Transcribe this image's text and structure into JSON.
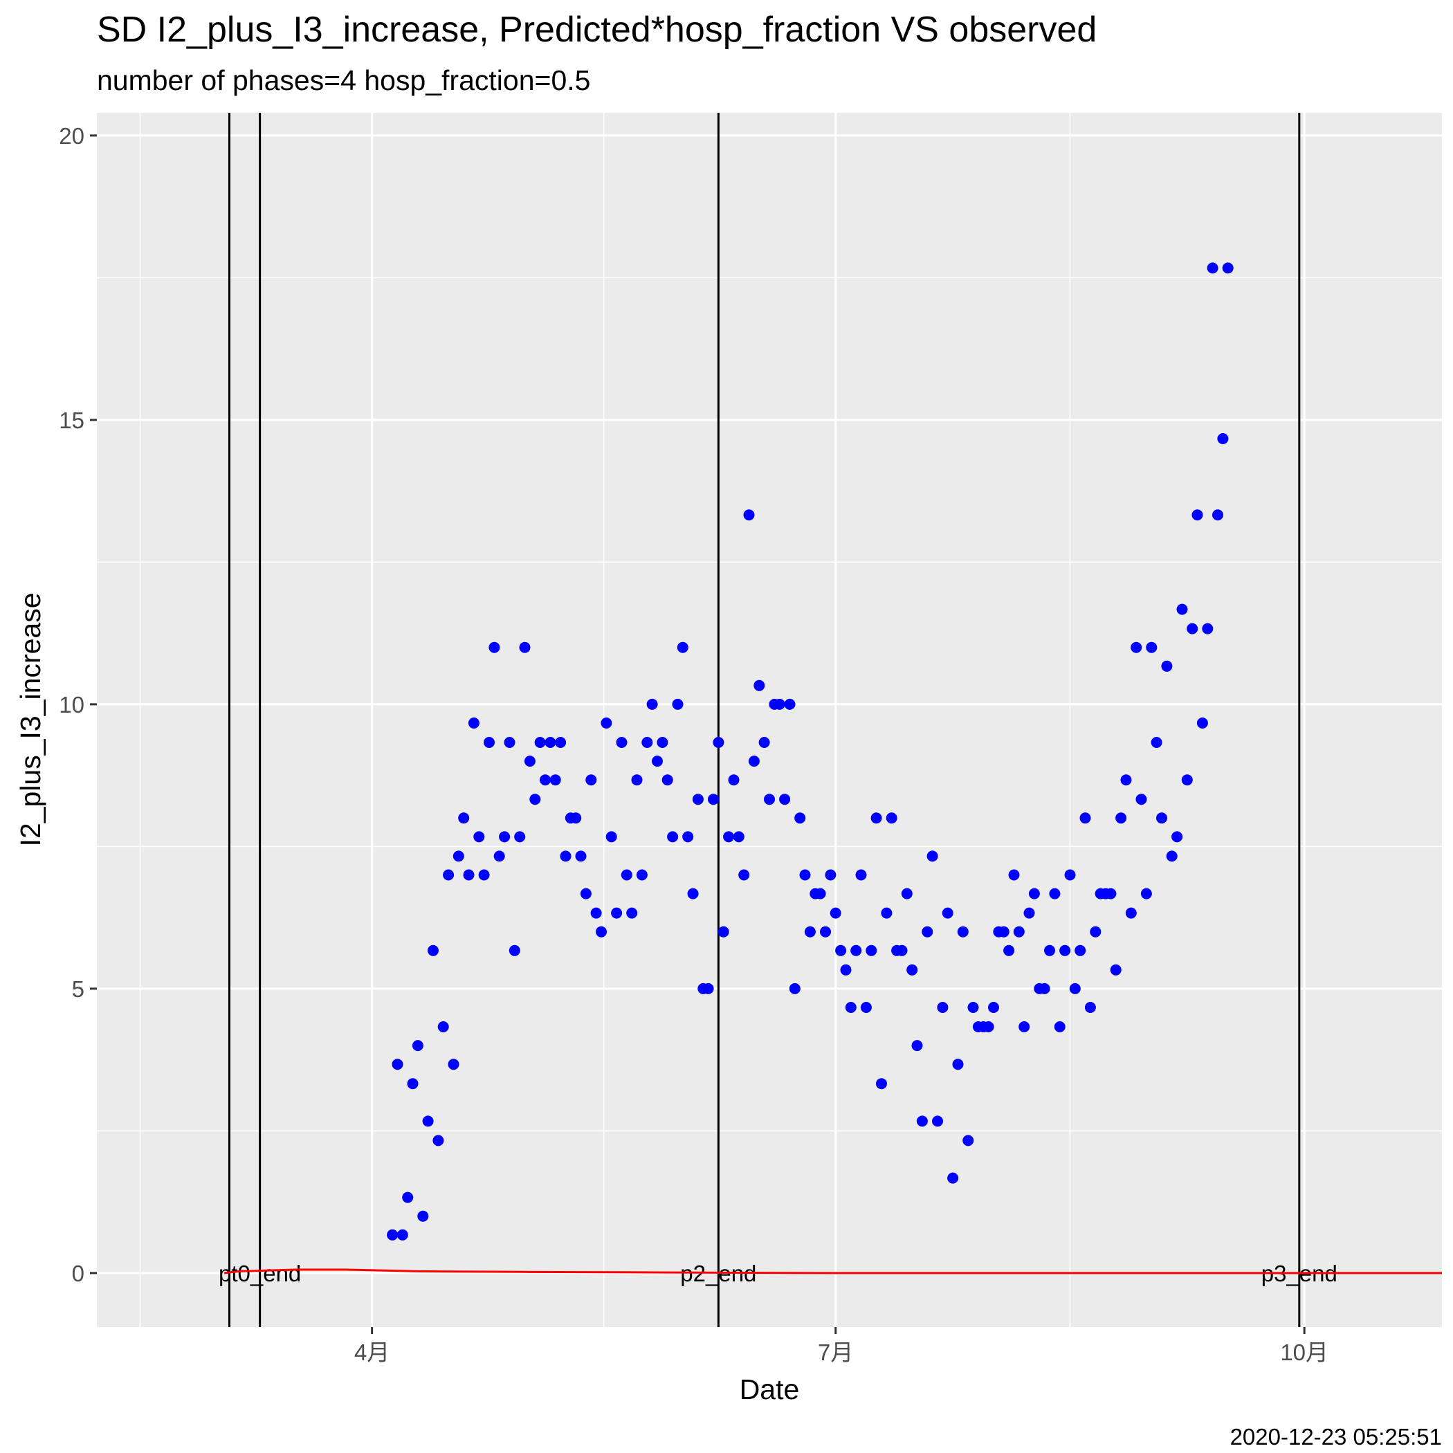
{
  "chart_data": {
    "type": "scatter",
    "title": "SD I2_plus_I3_increase, Predicted*hosp_fraction VS observed",
    "subtitle": "number of phases=4   hosp_fraction=0.5",
    "caption": "2020-12-23 05:25:51",
    "xlabel": "Date",
    "ylabel": "I2_plus_I3_increase",
    "xlim": [
      "2020-02-07",
      "2020-10-28"
    ],
    "ylim": [
      -0.95,
      20.4
    ],
    "x_ticks": [
      {
        "date": "2020-04-01",
        "label": "4月"
      },
      {
        "date": "2020-07-01",
        "label": "7月"
      },
      {
        "date": "2020-10-01",
        "label": "10月"
      }
    ],
    "y_ticks": [
      0,
      5,
      10,
      15,
      20
    ],
    "grid": true,
    "legend": "none",
    "vertical_lines": [
      {
        "date": "2020-03-04",
        "label": ""
      },
      {
        "date": "2020-03-10",
        "label": "pt0_end"
      },
      {
        "date": "2020-06-08",
        "label": "p2_end"
      },
      {
        "date": "2020-09-30",
        "label": "p3_end"
      }
    ],
    "colors": {
      "observed": "#0000ff",
      "predicted": "#ff0000",
      "vline": "#000000",
      "panel": "#ebebeb",
      "grid": "#ffffff"
    },
    "series": [
      {
        "kind": "points",
        "color": "#0000ff",
        "points": [
          [
            "2020-04-05",
            0.67
          ],
          [
            "2020-04-06",
            3.67
          ],
          [
            "2020-04-07",
            0.67
          ],
          [
            "2020-04-08",
            1.33
          ],
          [
            "2020-04-09",
            3.33
          ],
          [
            "2020-04-10",
            4.0
          ],
          [
            "2020-04-11",
            1.0
          ],
          [
            "2020-04-12",
            2.67
          ],
          [
            "2020-04-13",
            5.67
          ],
          [
            "2020-04-14",
            2.33
          ],
          [
            "2020-04-15",
            4.33
          ],
          [
            "2020-04-16",
            7.0
          ],
          [
            "2020-04-17",
            3.67
          ],
          [
            "2020-04-18",
            7.33
          ],
          [
            "2020-04-19",
            8.0
          ],
          [
            "2020-04-20",
            7.0
          ],
          [
            "2020-04-21",
            9.67
          ],
          [
            "2020-04-22",
            7.67
          ],
          [
            "2020-04-23",
            7.0
          ],
          [
            "2020-04-24",
            9.33
          ],
          [
            "2020-04-25",
            11.0
          ],
          [
            "2020-04-26",
            7.33
          ],
          [
            "2020-04-27",
            7.67
          ],
          [
            "2020-04-28",
            9.33
          ],
          [
            "2020-04-29",
            5.67
          ],
          [
            "2020-04-30",
            7.67
          ],
          [
            "2020-05-01",
            11.0
          ],
          [
            "2020-05-02",
            9.0
          ],
          [
            "2020-05-03",
            8.33
          ],
          [
            "2020-05-04",
            9.33
          ],
          [
            "2020-05-05",
            8.67
          ],
          [
            "2020-05-06",
            9.33
          ],
          [
            "2020-05-07",
            8.67
          ],
          [
            "2020-05-08",
            9.33
          ],
          [
            "2020-05-09",
            7.33
          ],
          [
            "2020-05-10",
            8.0
          ],
          [
            "2020-05-11",
            8.0
          ],
          [
            "2020-05-12",
            7.33
          ],
          [
            "2020-05-13",
            6.67
          ],
          [
            "2020-05-14",
            8.67
          ],
          [
            "2020-05-15",
            6.33
          ],
          [
            "2020-05-16",
            6.0
          ],
          [
            "2020-05-17",
            9.67
          ],
          [
            "2020-05-18",
            7.67
          ],
          [
            "2020-05-19",
            6.33
          ],
          [
            "2020-05-20",
            9.33
          ],
          [
            "2020-05-21",
            7.0
          ],
          [
            "2020-05-22",
            6.33
          ],
          [
            "2020-05-23",
            8.67
          ],
          [
            "2020-05-24",
            7.0
          ],
          [
            "2020-05-25",
            9.33
          ],
          [
            "2020-05-26",
            10.0
          ],
          [
            "2020-05-27",
            9.0
          ],
          [
            "2020-05-28",
            9.33
          ],
          [
            "2020-05-29",
            8.67
          ],
          [
            "2020-05-30",
            7.67
          ],
          [
            "2020-05-31",
            10.0
          ],
          [
            "2020-06-01",
            11.0
          ],
          [
            "2020-06-02",
            7.67
          ],
          [
            "2020-06-03",
            6.67
          ],
          [
            "2020-06-04",
            8.33
          ],
          [
            "2020-06-05",
            5.0
          ],
          [
            "2020-06-06",
            5.0
          ],
          [
            "2020-06-07",
            8.33
          ],
          [
            "2020-06-08",
            9.33
          ],
          [
            "2020-06-09",
            6.0
          ],
          [
            "2020-06-10",
            7.67
          ],
          [
            "2020-06-11",
            8.67
          ],
          [
            "2020-06-12",
            7.67
          ],
          [
            "2020-06-13",
            7.0
          ],
          [
            "2020-06-14",
            13.33
          ],
          [
            "2020-06-15",
            9.0
          ],
          [
            "2020-06-16",
            10.33
          ],
          [
            "2020-06-17",
            9.33
          ],
          [
            "2020-06-18",
            8.33
          ],
          [
            "2020-06-19",
            10.0
          ],
          [
            "2020-06-20",
            10.0
          ],
          [
            "2020-06-21",
            8.33
          ],
          [
            "2020-06-22",
            10.0
          ],
          [
            "2020-06-23",
            5.0
          ],
          [
            "2020-06-24",
            8.0
          ],
          [
            "2020-06-25",
            7.0
          ],
          [
            "2020-06-26",
            6.0
          ],
          [
            "2020-06-27",
            6.67
          ],
          [
            "2020-06-28",
            6.67
          ],
          [
            "2020-06-29",
            6.0
          ],
          [
            "2020-06-30",
            7.0
          ],
          [
            "2020-07-01",
            6.33
          ],
          [
            "2020-07-02",
            5.67
          ],
          [
            "2020-07-03",
            5.33
          ],
          [
            "2020-07-04",
            4.67
          ],
          [
            "2020-07-05",
            5.67
          ],
          [
            "2020-07-06",
            7.0
          ],
          [
            "2020-07-07",
            4.67
          ],
          [
            "2020-07-08",
            5.67
          ],
          [
            "2020-07-09",
            8.0
          ],
          [
            "2020-07-10",
            3.33
          ],
          [
            "2020-07-11",
            6.33
          ],
          [
            "2020-07-12",
            8.0
          ],
          [
            "2020-07-13",
            5.67
          ],
          [
            "2020-07-14",
            5.67
          ],
          [
            "2020-07-15",
            6.67
          ],
          [
            "2020-07-16",
            5.33
          ],
          [
            "2020-07-17",
            4.0
          ],
          [
            "2020-07-18",
            2.67
          ],
          [
            "2020-07-19",
            6.0
          ],
          [
            "2020-07-20",
            7.33
          ],
          [
            "2020-07-21",
            2.67
          ],
          [
            "2020-07-22",
            4.67
          ],
          [
            "2020-07-23",
            6.33
          ],
          [
            "2020-07-24",
            1.67
          ],
          [
            "2020-07-25",
            3.67
          ],
          [
            "2020-07-26",
            6.0
          ],
          [
            "2020-07-27",
            2.33
          ],
          [
            "2020-07-28",
            4.67
          ],
          [
            "2020-07-29",
            4.33
          ],
          [
            "2020-07-30",
            4.33
          ],
          [
            "2020-07-31",
            4.33
          ],
          [
            "2020-08-01",
            4.67
          ],
          [
            "2020-08-02",
            6.0
          ],
          [
            "2020-08-03",
            6.0
          ],
          [
            "2020-08-04",
            5.67
          ],
          [
            "2020-08-05",
            7.0
          ],
          [
            "2020-08-06",
            6.0
          ],
          [
            "2020-08-07",
            4.33
          ],
          [
            "2020-08-08",
            6.33
          ],
          [
            "2020-08-09",
            6.67
          ],
          [
            "2020-08-10",
            5.0
          ],
          [
            "2020-08-11",
            5.0
          ],
          [
            "2020-08-12",
            5.67
          ],
          [
            "2020-08-13",
            6.67
          ],
          [
            "2020-08-14",
            4.33
          ],
          [
            "2020-08-15",
            5.67
          ],
          [
            "2020-08-16",
            7.0
          ],
          [
            "2020-08-17",
            5.0
          ],
          [
            "2020-08-18",
            5.67
          ],
          [
            "2020-08-19",
            8.0
          ],
          [
            "2020-08-20",
            4.67
          ],
          [
            "2020-08-21",
            6.0
          ],
          [
            "2020-08-22",
            6.67
          ],
          [
            "2020-08-23",
            6.67
          ],
          [
            "2020-08-24",
            6.67
          ],
          [
            "2020-08-25",
            5.33
          ],
          [
            "2020-08-26",
            8.0
          ],
          [
            "2020-08-27",
            8.67
          ],
          [
            "2020-08-28",
            6.33
          ],
          [
            "2020-08-29",
            11.0
          ],
          [
            "2020-08-30",
            8.33
          ],
          [
            "2020-08-31",
            6.67
          ],
          [
            "2020-09-01",
            11.0
          ],
          [
            "2020-09-02",
            9.33
          ],
          [
            "2020-09-03",
            8.0
          ],
          [
            "2020-09-04",
            10.67
          ],
          [
            "2020-09-05",
            7.33
          ],
          [
            "2020-09-06",
            7.67
          ],
          [
            "2020-09-07",
            11.67
          ],
          [
            "2020-09-08",
            8.67
          ],
          [
            "2020-09-09",
            11.33
          ],
          [
            "2020-09-10",
            13.33
          ],
          [
            "2020-09-11",
            9.67
          ],
          [
            "2020-09-12",
            11.33
          ],
          [
            "2020-09-13",
            17.67
          ],
          [
            "2020-09-14",
            13.33
          ],
          [
            "2020-09-15",
            14.67
          ],
          [
            "2020-09-16",
            17.67
          ]
        ]
      },
      {
        "kind": "line",
        "color": "#ff0000",
        "points": [
          [
            "2020-03-03",
            0.0
          ],
          [
            "2020-03-06",
            0.03
          ],
          [
            "2020-03-10",
            0.04
          ],
          [
            "2020-03-17",
            0.06
          ],
          [
            "2020-03-27",
            0.06
          ],
          [
            "2020-04-10",
            0.03
          ],
          [
            "2020-05-01",
            0.02
          ],
          [
            "2020-05-31",
            0.01
          ],
          [
            "2020-06-30",
            0.0
          ],
          [
            "2020-08-01",
            0.0
          ],
          [
            "2020-09-01",
            0.0
          ],
          [
            "2020-10-01",
            0.0
          ],
          [
            "2020-10-28",
            0.0
          ]
        ]
      }
    ]
  }
}
